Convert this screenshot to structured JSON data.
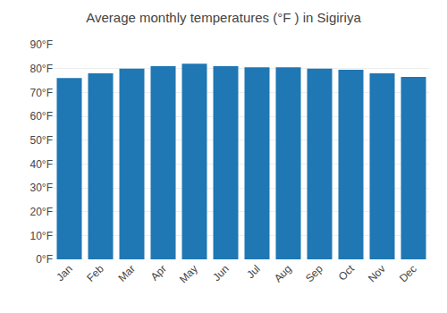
{
  "chart_data": {
    "type": "bar",
    "title": "Average monthly temperatures (°F ) in Sigiriya",
    "categories": [
      "Jan",
      "Feb",
      "Mar",
      "Apr",
      "May",
      "Jun",
      "Jul",
      "Aug",
      "Sep",
      "Oct",
      "Nov",
      "Dec"
    ],
    "values": [
      76,
      78,
      80,
      81,
      82,
      81,
      80.5,
      80.5,
      80,
      79.5,
      78,
      76.5
    ],
    "ylim": [
      0,
      90
    ],
    "yticks": [
      {
        "value": 0,
        "label": "0°F"
      },
      {
        "value": 10,
        "label": "10°F"
      },
      {
        "value": 20,
        "label": "20°F"
      },
      {
        "value": 30,
        "label": "30°F"
      },
      {
        "value": 40,
        "label": "40°F"
      },
      {
        "value": 50,
        "label": "50°F"
      },
      {
        "value": 60,
        "label": "60°F"
      },
      {
        "value": 70,
        "label": "70°F"
      },
      {
        "value": 80,
        "label": "80°F"
      },
      {
        "value": 90,
        "label": "90°F"
      }
    ],
    "grid": true
  }
}
